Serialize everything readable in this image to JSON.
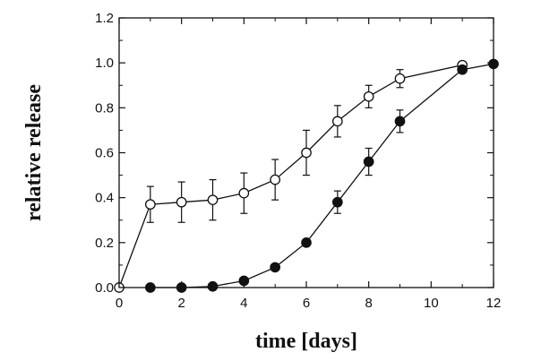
{
  "chart_data": {
    "type": "line",
    "title": "",
    "xlabel": "time [days]",
    "ylabel": "relative release",
    "xlim": [
      0,
      12
    ],
    "ylim": [
      0,
      1.2
    ],
    "xticks": [
      0,
      2,
      4,
      6,
      8,
      10,
      12
    ],
    "yticks": [
      0.0,
      0.2,
      0.4,
      0.6,
      0.8,
      1.0,
      1.2
    ],
    "ytick_labels": [
      "0.0",
      "0.2",
      "0.4",
      "0.6",
      "0.8",
      "1.0",
      "1.2"
    ],
    "grid": false,
    "series": [
      {
        "name": "open circles",
        "marker": "open-circle",
        "x": [
          0,
          1,
          2,
          3,
          4,
          5,
          6,
          7,
          8,
          9,
          11
        ],
        "y": [
          0.0,
          0.37,
          0.38,
          0.39,
          0.42,
          0.48,
          0.6,
          0.74,
          0.85,
          0.93,
          0.99
        ],
        "err": [
          0.0,
          0.08,
          0.09,
          0.09,
          0.09,
          0.09,
          0.1,
          0.07,
          0.05,
          0.04,
          0.0
        ]
      },
      {
        "name": "filled circles",
        "marker": "filled-circle",
        "x": [
          1,
          2,
          3,
          4,
          5,
          6,
          7,
          8,
          9,
          11,
          12
        ],
        "y": [
          0.0,
          0.0,
          0.005,
          0.03,
          0.09,
          0.2,
          0.38,
          0.56,
          0.74,
          0.97,
          0.995
        ],
        "err": [
          0.0,
          0.0,
          0.0,
          0.0,
          0.0,
          0.0,
          0.05,
          0.06,
          0.05,
          0.0,
          0.0
        ]
      }
    ]
  }
}
